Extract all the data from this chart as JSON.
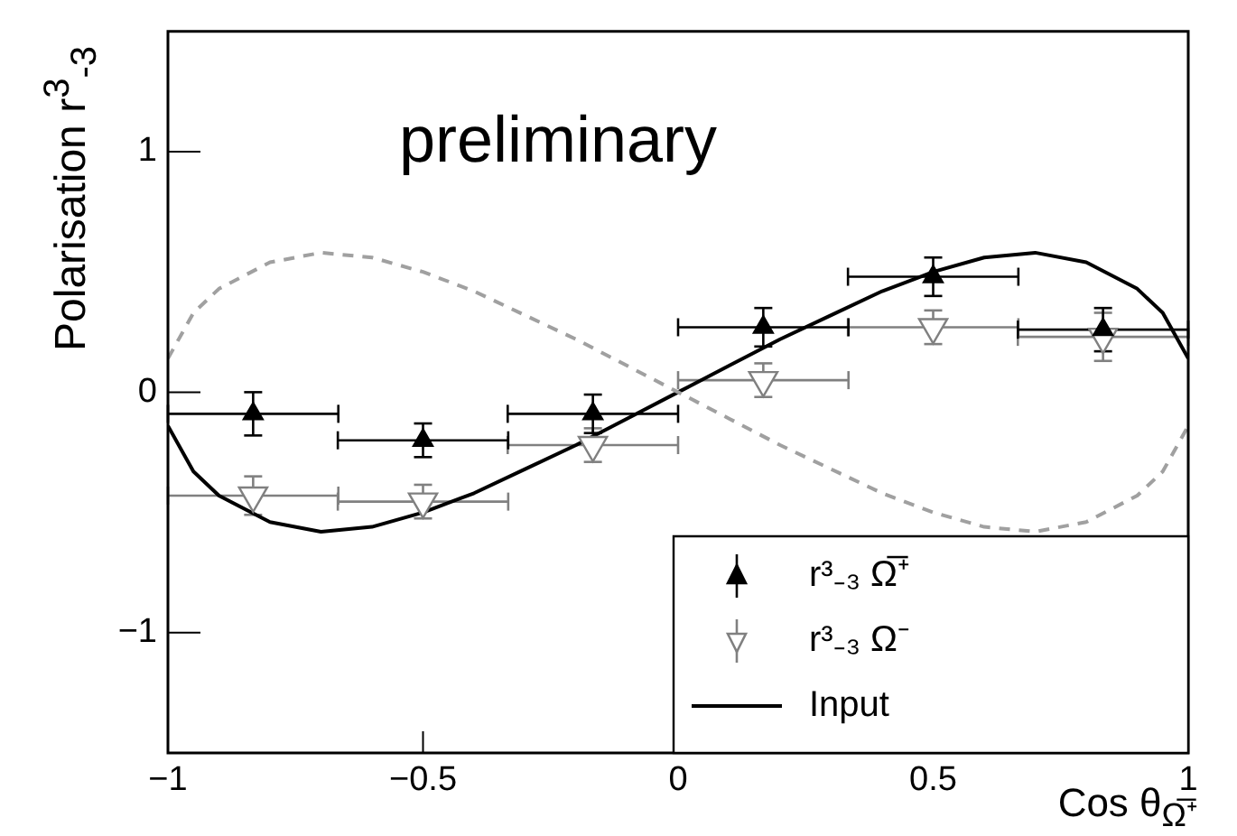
{
  "chart_data": {
    "type": "scatter",
    "ylabel": "Polarisation r$^{3}$$_{-3}$",
    "xlabel": "Cos θ$_{Ω̅⁺}$",
    "annotations": [
      "preliminary"
    ],
    "xlim": [
      -1,
      1
    ],
    "xticks": [
      {
        "value": -1,
        "label": "−1"
      },
      {
        "value": -0.5,
        "label": "−0.5"
      },
      0,
      0.5,
      1
    ],
    "ylim": [
      -1.5,
      1.5
    ],
    "yticks": [
      {
        "value": -1,
        "label": "−1"
      },
      0,
      1
    ],
    "grid": false,
    "legend": "bottom right",
    "series": [
      {
        "name": "r³₋₃ Ω̅⁺",
        "type": "scatter",
        "color": "#000000",
        "marker": "triangle",
        "x": [
          -0.833,
          -0.5,
          -0.167,
          0.167,
          0.5,
          0.833
        ],
        "values": [
          -0.09,
          -0.2,
          -0.09,
          0.27,
          0.48,
          0.26
        ],
        "errors": [
          0.09,
          0.07,
          0.08,
          0.08,
          0.08,
          0.09
        ],
        "xerrors": [
          0.167,
          0.167,
          0.167,
          0.167,
          0.167,
          0.167
        ]
      },
      {
        "name": "r³₋₃ Ω⁻",
        "type": "scatter",
        "color": "#808080",
        "marker": "triangle-down",
        "x": [
          -0.833,
          -0.5,
          -0.167,
          0.167,
          0.5,
          0.833
        ],
        "values": [
          -0.43,
          -0.455,
          -0.22,
          0.05,
          0.27,
          0.23
        ],
        "errors": [
          0.08,
          0.07,
          0.07,
          0.07,
          0.07,
          0.1
        ],
        "xerrors": [
          0.167,
          0.167,
          0.167,
          0.167,
          0.167,
          0.167
        ]
      },
      {
        "type": "line",
        "color": "#a0a0a0",
        "line_style": "dashed",
        "x": [
          -1,
          -0.95,
          -0.9,
          -0.8,
          -0.7,
          -0.6,
          -0.5,
          -0.4,
          -0.3,
          -0.2,
          -0.1,
          0,
          0.1,
          0.2,
          0.3,
          0.4,
          0.5,
          0.6,
          0.7,
          0.8,
          0.9,
          0.95,
          1
        ],
        "values": [
          0.14,
          0.33,
          0.43,
          0.54,
          0.58,
          0.56,
          0.5,
          0.42,
          0.32,
          0.22,
          0.11,
          0,
          -0.11,
          -0.22,
          -0.32,
          -0.42,
          -0.5,
          -0.56,
          -0.58,
          -0.54,
          -0.43,
          -0.33,
          -0.14
        ]
      },
      {
        "name": "Input",
        "type": "line",
        "color": "#000000",
        "line_style": "solid",
        "x": [
          -1,
          -0.95,
          -0.9,
          -0.8,
          -0.7,
          -0.6,
          -0.5,
          -0.4,
          -0.3,
          -0.2,
          -0.1,
          0,
          0.1,
          0.2,
          0.3,
          0.4,
          0.5,
          0.6,
          0.7,
          0.8,
          0.9,
          0.95,
          1
        ],
        "values": [
          -0.14,
          -0.33,
          -0.43,
          -0.54,
          -0.58,
          -0.56,
          -0.5,
          -0.42,
          -0.32,
          -0.22,
          -0.11,
          0,
          0.11,
          0.22,
          0.32,
          0.42,
          0.5,
          0.56,
          0.58,
          0.54,
          0.43,
          0.33,
          0.14
        ]
      }
    ]
  }
}
